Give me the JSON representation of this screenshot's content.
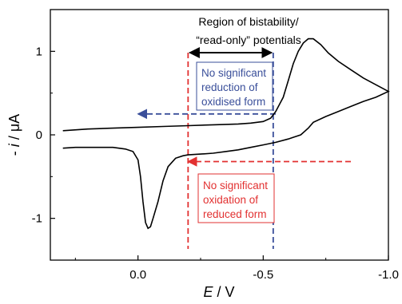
{
  "chart_data": {
    "type": "line",
    "title": "",
    "xlabel": {
      "var": "E",
      "unit": " / V"
    },
    "ylabel": {
      "sign": "- ",
      "var": "i",
      "unit": " / μA"
    },
    "xlim": [
      0.35,
      -1.0
    ],
    "ylim": [
      -1.5,
      1.5
    ],
    "x_ticks": [
      {
        "value": 0.0,
        "label": "0.0"
      },
      {
        "value": -0.5,
        "label": "-0.5"
      },
      {
        "value": -1.0,
        "label": "-1.0"
      }
    ],
    "y_ticks": [
      {
        "value": 1,
        "label": "1"
      },
      {
        "value": 0,
        "label": "0"
      },
      {
        "value": -1,
        "label": "-1"
      }
    ],
    "grid": false,
    "series": [
      {
        "color": "#000000",
        "x": [
          0.3,
          0.2,
          0.1,
          0.0,
          -0.1,
          -0.2,
          -0.3,
          -0.4,
          -0.45,
          -0.5,
          -0.53,
          -0.55,
          -0.58,
          -0.6,
          -0.62,
          -0.64,
          -0.66,
          -0.68,
          -0.7,
          -0.73,
          -0.76,
          -0.8,
          -0.85,
          -0.9,
          -0.95,
          -1.0,
          -0.95,
          -0.9,
          -0.85,
          -0.8,
          -0.75,
          -0.7,
          -0.68,
          -0.65,
          -0.62,
          -0.6,
          -0.55,
          -0.5,
          -0.45,
          -0.4,
          -0.35,
          -0.3,
          -0.25,
          -0.2,
          -0.18,
          -0.15,
          -0.12,
          -0.1,
          -0.08,
          -0.06,
          -0.05,
          -0.04,
          -0.03,
          -0.02,
          -0.01,
          0.0,
          0.02,
          0.05,
          0.1,
          0.15,
          0.2,
          0.25,
          0.3
        ],
        "y": [
          0.05,
          0.07,
          0.08,
          0.09,
          0.1,
          0.11,
          0.12,
          0.13,
          0.14,
          0.16,
          0.2,
          0.28,
          0.45,
          0.65,
          0.85,
          1.0,
          1.1,
          1.15,
          1.15,
          1.08,
          0.98,
          0.88,
          0.78,
          0.68,
          0.6,
          0.52,
          0.45,
          0.4,
          0.34,
          0.28,
          0.22,
          0.15,
          0.08,
          0.0,
          -0.03,
          -0.05,
          -0.09,
          -0.12,
          -0.15,
          -0.18,
          -0.2,
          -0.22,
          -0.23,
          -0.24,
          -0.25,
          -0.28,
          -0.38,
          -0.55,
          -0.8,
          -1.0,
          -1.1,
          -1.12,
          -1.05,
          -0.8,
          -0.5,
          -0.3,
          -0.2,
          -0.17,
          -0.15,
          -0.15,
          -0.15,
          -0.15,
          -0.16
        ]
      }
    ],
    "annotations": {
      "region_title": [
        "Region of bistability/",
        "“read-only” potentials"
      ],
      "region_x": [
        -0.2,
        -0.54
      ],
      "blue_text": [
        "No significant",
        "reduction of",
        "oxidised form"
      ],
      "red_text": [
        "No significant",
        "oxidation of",
        "reduced form"
      ],
      "blue_color": "#3a4f9a",
      "red_color": "#e23131",
      "blue_arrow": {
        "from": -0.55,
        "to": 0.0,
        "y": 0.25
      },
      "red_arrow": {
        "from": -0.2,
        "to": -0.85,
        "y": -0.32
      },
      "blue_vline_x": -0.54,
      "red_vline_x": -0.2
    }
  }
}
